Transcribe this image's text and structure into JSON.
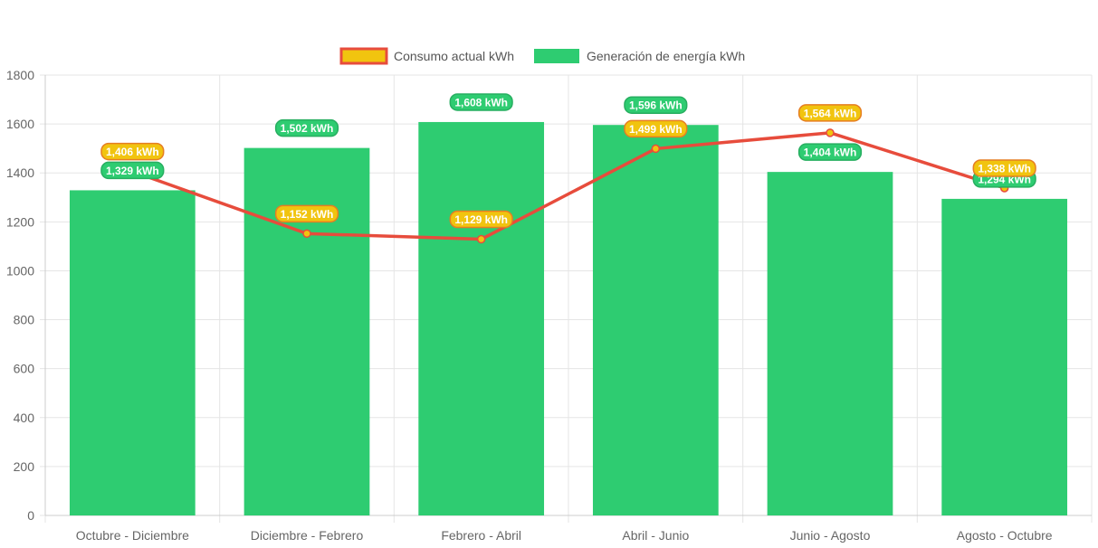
{
  "chart_data": {
    "type": "bar",
    "categories": [
      "Octubre - Diciembre",
      "Diciembre - Febrero",
      "Febrero - Abril",
      "Abril - Junio",
      "Junio - Agosto",
      "Agosto - Octubre"
    ],
    "series": [
      {
        "name": "Consumo actual kWh",
        "type": "line",
        "values": [
          1406,
          1152,
          1129,
          1499,
          1564,
          1338
        ],
        "labels": [
          "1,406 kWh",
          "1,152 kWh",
          "1,129 kWh",
          "1,499 kWh",
          "1,564 kWh",
          "1,338 kWh"
        ],
        "color": "#e74c3c",
        "fill": "#f1c40f"
      },
      {
        "name": "Generación de energía kWh",
        "type": "bar",
        "values": [
          1329,
          1502,
          1608,
          1596,
          1404,
          1294
        ],
        "labels": [
          "1,329 kWh",
          "1,502 kWh",
          "1,608 kWh",
          "1,596 kWh",
          "1,404 kWh",
          "1,294 kWh"
        ],
        "color": "#2ecc71"
      }
    ],
    "ylim": [
      0,
      1800
    ],
    "yticks": [
      0,
      200,
      400,
      600,
      800,
      1000,
      1200,
      1400,
      1600,
      1800
    ],
    "grid": true,
    "legend": "top-center",
    "title": "",
    "xlabel": "",
    "ylabel": ""
  }
}
